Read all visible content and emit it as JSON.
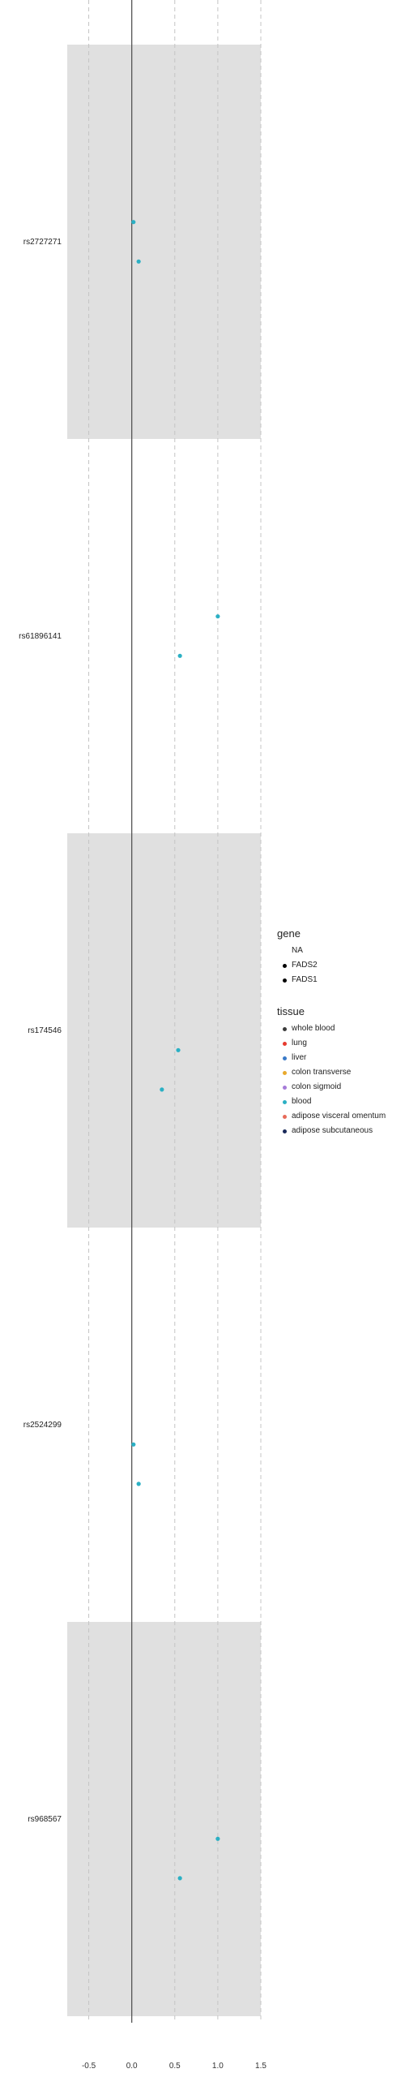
{
  "chart_data": {
    "type": "scatter",
    "xlim": [
      -0.75,
      1.5
    ],
    "x_ticks": [
      "-0.5",
      "0.0",
      "0.5",
      "1.0",
      "1.5"
    ],
    "x_tick_values": [
      -0.5,
      0.0,
      0.5,
      1.0,
      1.5
    ],
    "reference_line_x": 0,
    "grid": "dashed vertical",
    "legend_position": "right",
    "categories": [
      "rs2727271",
      "rs61896141",
      "rs174546",
      "rs2524299",
      "rs968567"
    ],
    "shaded_bands": [
      "rs2727271",
      "rs174546",
      "rs968567"
    ],
    "points": [
      {
        "snp": "rs2727271",
        "x": 0.02,
        "offset": 0.05,
        "tissue": "blood"
      },
      {
        "snp": "rs2727271",
        "x": 0.08,
        "offset": -0.05,
        "tissue": "blood"
      },
      {
        "snp": "rs61896141",
        "x": 1.0,
        "offset": 0.05,
        "tissue": "blood"
      },
      {
        "snp": "rs61896141",
        "x": 0.56,
        "offset": -0.05,
        "tissue": "blood"
      },
      {
        "snp": "rs174546",
        "x": 0.54,
        "offset": -0.05,
        "tissue": "blood"
      },
      {
        "snp": "rs174546",
        "x": 0.35,
        "offset": -0.15,
        "tissue": "blood"
      },
      {
        "snp": "rs2524299",
        "x": 0.02,
        "offset": -0.05,
        "tissue": "blood"
      },
      {
        "snp": "rs2524299",
        "x": 0.08,
        "offset": -0.15,
        "tissue": "blood"
      },
      {
        "snp": "rs968567",
        "x": 1.0,
        "offset": -0.05,
        "tissue": "blood"
      },
      {
        "snp": "rs968567",
        "x": 0.56,
        "offset": -0.15,
        "tissue": "blood"
      }
    ],
    "legend": {
      "gene": {
        "title": "gene",
        "items": [
          {
            "label": "NA",
            "marker": "none"
          },
          {
            "label": "FADS2",
            "marker": "dot"
          },
          {
            "label": "FADS1",
            "marker": "dot"
          }
        ]
      },
      "tissue": {
        "title": "tissue",
        "items": [
          {
            "label": "whole blood",
            "color": "#3b3b3b"
          },
          {
            "label": "lung",
            "color": "#e63b2e"
          },
          {
            "label": "liver",
            "color": "#3a7ac8"
          },
          {
            "label": "colon transverse",
            "color": "#e8a92d"
          },
          {
            "label": "colon sigmoid",
            "color": "#a67bd8"
          },
          {
            "label": "blood",
            "color": "#2bb0c4"
          },
          {
            "label": "adipose visceral omentum",
            "color": "#e76b5a"
          },
          {
            "label": "adipose subcutaneous",
            "color": "#1a2a5a"
          }
        ]
      }
    },
    "colors": {
      "band": "#e0e0e0",
      "grid": "#c4c4c4",
      "zero_line": "#555555",
      "blood": "#2bb0c4"
    }
  }
}
